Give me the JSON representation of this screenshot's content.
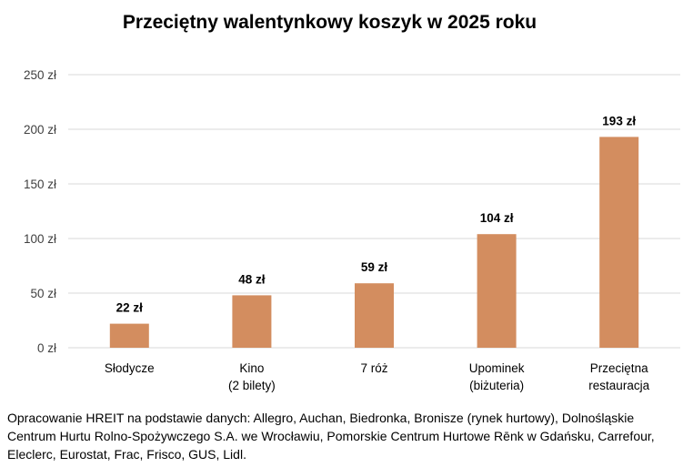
{
  "chart_data": {
    "type": "bar",
    "title": "Przeciętny walentynkowy koszyk w 2025 roku",
    "categories": [
      [
        "Słodycze"
      ],
      [
        "Kino",
        "(2 bilety)"
      ],
      [
        "7 róż"
      ],
      [
        "Upominek",
        "(biżuteria)"
      ],
      [
        "Przeciętna",
        "restauracja"
      ]
    ],
    "values": [
      22,
      48,
      59,
      104,
      193
    ],
    "data_labels": [
      "22 zł",
      "48 zł",
      "59 zł",
      "104 zł",
      "193 zł"
    ],
    "y_ticks": [
      "0 zł",
      "50 zł",
      "100 zł",
      "150 zł",
      "200 zł",
      "250 zł"
    ],
    "ylim": [
      0,
      250
    ],
    "y_step": 50,
    "grid": true,
    "bar_color": "#D38D5F",
    "grid_color": "#D9D9D9"
  },
  "source": "Opracowanie HREIT na podstawie danych: Allegro, Auchan, Biedronka, Bronisze (rynek hurtowy), Dolnośląskie\nCentrum Hurtu Rolno-Spożywczego S.A. we Wrocławiu, Pomorskie Centrum Hurtowe Rēnk w Gdańsku,  Carrefour,\nEleclerc, Eurostat, Frac, Frisco, GUS, Lidl."
}
